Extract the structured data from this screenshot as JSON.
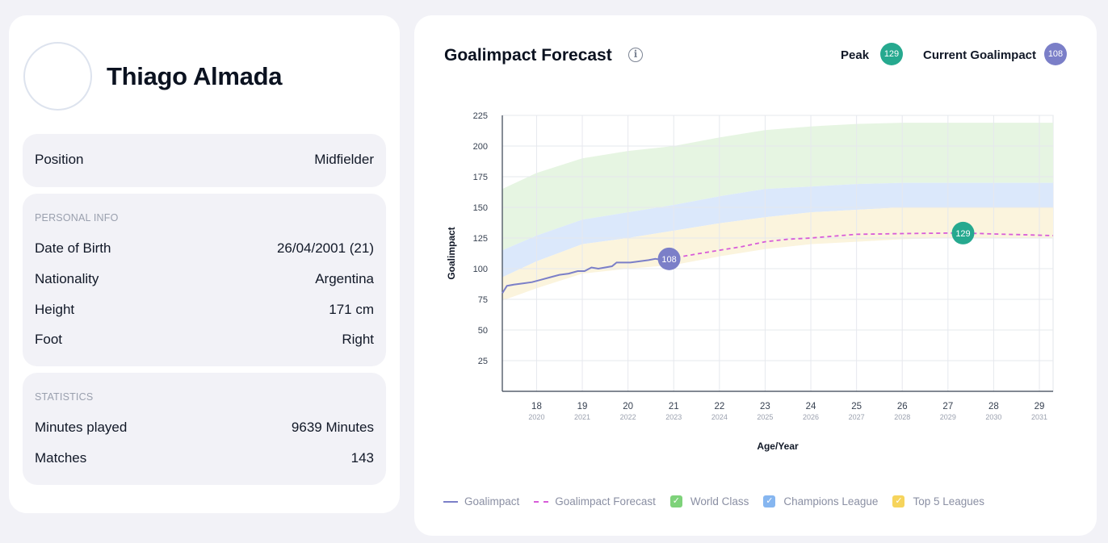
{
  "player": {
    "name": "Thiago Almada"
  },
  "position": {
    "label": "Position",
    "value": "Midfielder"
  },
  "personal_info": {
    "title": "PERSONAL INFO",
    "rows": [
      {
        "label": "Date of Birth",
        "value": "26/04/2001 (21)"
      },
      {
        "label": "Nationality",
        "value": "Argentina"
      },
      {
        "label": "Height",
        "value": "171 cm"
      },
      {
        "label": "Foot",
        "value": "Right"
      }
    ]
  },
  "statistics": {
    "title": "STATISTICS",
    "rows": [
      {
        "label": "Minutes played",
        "value": "9639 Minutes"
      },
      {
        "label": "Matches",
        "value": "143"
      }
    ]
  },
  "forecast": {
    "title": "Goalimpact Forecast",
    "info_icon": "info-icon",
    "peak_label": "Peak",
    "peak_value": "129",
    "current_label": "Current Goalimpact",
    "current_value": "108",
    "colors": {
      "peak": "#26a98f",
      "current": "#7b7fc8",
      "forecast_line": "#d85cd9",
      "world_class": "#e6f5e2",
      "champions_league": "#dbe8fb",
      "top5": "#fbf4dd"
    }
  },
  "legend": {
    "goalimpact": "Goalimpact",
    "forecast": "Goalimpact Forecast",
    "world_class": "World Class",
    "champions_league": "Champions League",
    "top5": "Top 5 Leagues"
  },
  "chart_data": {
    "type": "area",
    "xlabel": "Age/Year",
    "ylabel": "Goalimpact",
    "ylim": [
      0,
      225
    ],
    "yticks": [
      25,
      50,
      75,
      100,
      125,
      150,
      175,
      200,
      225
    ],
    "xlim": [
      17.25,
      29.3
    ],
    "xticks": [
      {
        "age": "18",
        "year": "2020"
      },
      {
        "age": "19",
        "year": "2021"
      },
      {
        "age": "20",
        "year": "2022"
      },
      {
        "age": "21",
        "year": "2023"
      },
      {
        "age": "22",
        "year": "2024"
      },
      {
        "age": "23",
        "year": "2025"
      },
      {
        "age": "24",
        "year": "2026"
      },
      {
        "age": "25",
        "year": "2027"
      },
      {
        "age": "26",
        "year": "2028"
      },
      {
        "age": "27",
        "year": "2029"
      },
      {
        "age": "28",
        "year": "2030"
      },
      {
        "age": "29",
        "year": "2031"
      }
    ],
    "grid": true,
    "series": [
      {
        "name": "Goalimpact",
        "x": [
          17.25,
          17.35,
          17.5,
          17.7,
          17.9,
          18.1,
          18.3,
          18.5,
          18.7,
          18.9,
          19.05,
          19.2,
          19.35,
          19.5,
          19.65,
          19.75,
          19.9,
          20.05,
          20.25,
          20.45,
          20.6,
          20.75,
          20.9
        ],
        "y": [
          80,
          86,
          87,
          88,
          89,
          91,
          93,
          95,
          96,
          98,
          98,
          101,
          100,
          101,
          102,
          105,
          105,
          105,
          106,
          107,
          108,
          107,
          108
        ]
      },
      {
        "name": "Goalimpact Forecast",
        "x": [
          20.9,
          21.5,
          22,
          22.5,
          23,
          23.5,
          24,
          24.5,
          25,
          25.5,
          26,
          26.5,
          27,
          27.33,
          27.7,
          28,
          28.5,
          29,
          29.3
        ],
        "y": [
          108,
          112,
          115,
          118,
          122,
          124,
          125,
          126.5,
          128,
          128.3,
          128.6,
          128.8,
          129,
          129,
          128.7,
          128.3,
          127.8,
          127.3,
          127
        ]
      }
    ],
    "bands": [
      {
        "name": "World Class",
        "x": [
          17.25,
          18,
          19,
          20,
          21,
          22,
          23,
          24,
          25,
          26,
          27,
          28,
          29,
          29.3
        ],
        "low": [
          115,
          127,
          140,
          146,
          152,
          159,
          165,
          167,
          169,
          170,
          170,
          170,
          170,
          170
        ],
        "high": [
          165,
          178,
          190,
          196,
          200,
          207,
          213,
          216,
          218,
          219,
          219,
          219,
          219,
          219
        ]
      },
      {
        "name": "Champions League",
        "x": [
          17.25,
          18,
          19,
          20,
          21,
          22,
          23,
          24,
          25,
          26,
          27,
          28,
          29,
          29.3
        ],
        "low": [
          93,
          106,
          120,
          125,
          131,
          137,
          142,
          146,
          148,
          150,
          150,
          150,
          150,
          150
        ],
        "high": [
          115,
          127,
          140,
          146,
          152,
          159,
          165,
          167,
          169,
          170,
          170,
          170,
          170,
          170
        ]
      },
      {
        "name": "Top 5 Leagues",
        "x": [
          17.25,
          18,
          19,
          20,
          21,
          22,
          23,
          24,
          25,
          26,
          27,
          28,
          29,
          29.3
        ],
        "low": [
          74,
          84,
          96,
          100,
          103,
          110,
          116,
          120,
          122,
          124,
          125,
          125,
          125,
          125
        ],
        "high": [
          93,
          106,
          120,
          125,
          131,
          137,
          142,
          146,
          148,
          150,
          150,
          150,
          150,
          150
        ]
      }
    ],
    "markers": [
      {
        "label": "108",
        "x": 20.9,
        "y": 108,
        "series": "Goalimpact"
      },
      {
        "label": "129",
        "x": 27.33,
        "y": 129,
        "series": "Goalimpact Forecast"
      }
    ]
  }
}
